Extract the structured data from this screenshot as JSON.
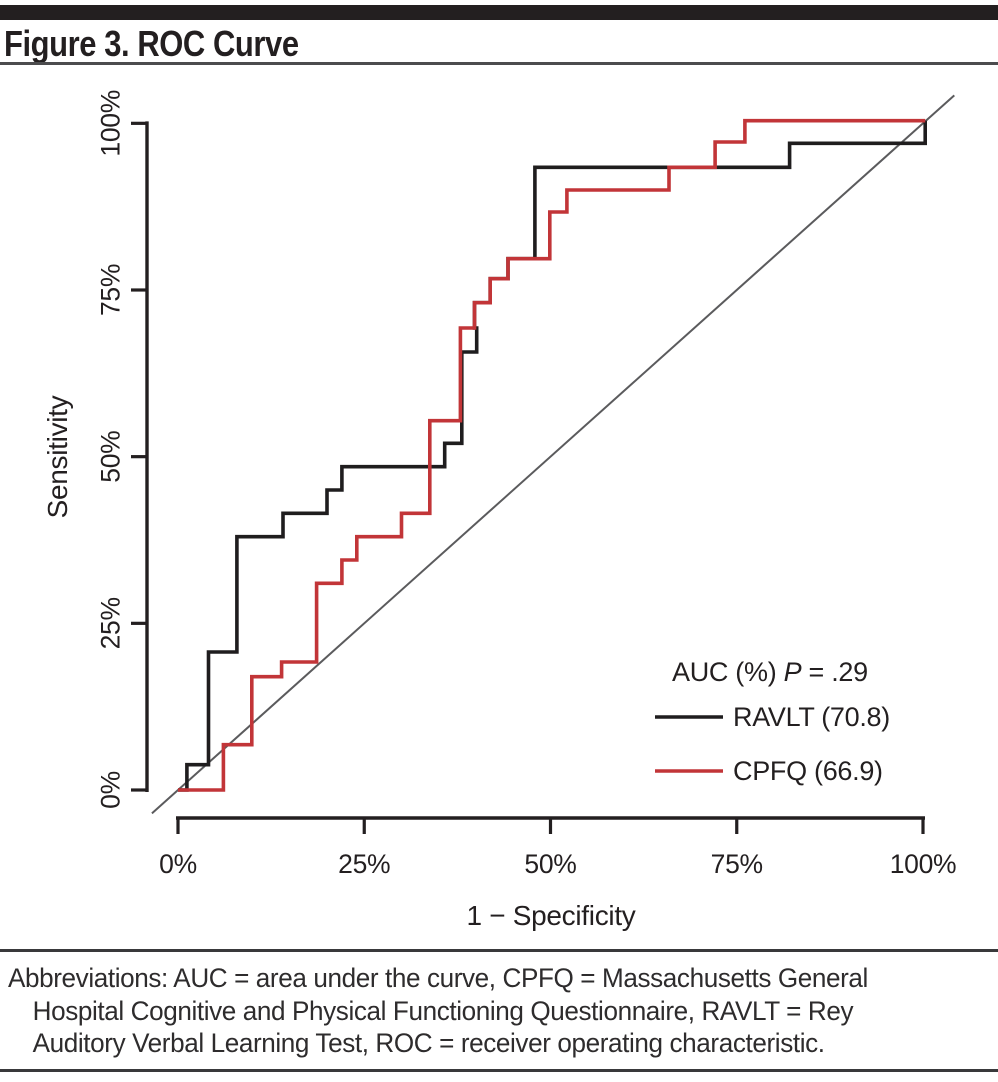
{
  "header": {
    "title": "Figure 3. ROC Curve"
  },
  "chart_data": {
    "type": "line",
    "subtype": "roc-step-curves",
    "title": "Figure 3. ROC Curve",
    "xlabel": "1 − Specificity",
    "ylabel": "Sensitivity",
    "xlim": [
      0,
      100
    ],
    "ylim": [
      0,
      100
    ],
    "grid": false,
    "diagonal_reference_line": true,
    "x_ticks": [
      {
        "label": "0%",
        "value": 0
      },
      {
        "label": "25%",
        "value": 25
      },
      {
        "label": "50%",
        "value": 50
      },
      {
        "label": "75%",
        "value": 75
      },
      {
        "label": "100%",
        "value": 100
      }
    ],
    "y_ticks": [
      {
        "label": "0%",
        "value": 0
      },
      {
        "label": "25%",
        "value": 25
      },
      {
        "label": "50%",
        "value": 50
      },
      {
        "label": "75%",
        "value": 75
      },
      {
        "label": "100%",
        "value": 100
      }
    ],
    "legend": {
      "position": "bottom-right",
      "title_parts": [
        "AUC (%) ",
        "P",
        " = .29"
      ],
      "items": [
        {
          "label": "RAVLT (70.8)",
          "color": "#1f1d1e"
        },
        {
          "label": "CPFQ (66.9)",
          "color": "#c23538"
        }
      ]
    },
    "series": [
      {
        "name": "RAVLT",
        "auc_percent": 70.8,
        "label": "RAVLT (70.8)",
        "color": "#1f1d1e",
        "points": [
          [
            0,
            0
          ],
          [
            1.2,
            0
          ],
          [
            1.2,
            3.8
          ],
          [
            4.1,
            3.8
          ],
          [
            4.1,
            20.7
          ],
          [
            7.9,
            20.7
          ],
          [
            7.9,
            38
          ],
          [
            14.1,
            38
          ],
          [
            14.1,
            41.5
          ],
          [
            20,
            41.5
          ],
          [
            20,
            45
          ],
          [
            22,
            45
          ],
          [
            22,
            48.5
          ],
          [
            35.8,
            48.5
          ],
          [
            35.8,
            52
          ],
          [
            38.1,
            52
          ],
          [
            38.1,
            65.7
          ],
          [
            40.1,
            65.7
          ],
          [
            40.1,
            69.3
          ],
          [
            39.8,
            69.3
          ],
          [
            39.8,
            73.1
          ],
          [
            41.9,
            73.1
          ],
          [
            41.9,
            76.7
          ],
          [
            44.3,
            76.7
          ],
          [
            44.3,
            79.7
          ],
          [
            47.9,
            79.7
          ],
          [
            47.9,
            93.4
          ],
          [
            82.1,
            93.4
          ],
          [
            82.1,
            97
          ],
          [
            100.3,
            97
          ],
          [
            100.3,
            100.4
          ]
        ]
      },
      {
        "name": "CPFQ",
        "auc_percent": 66.9,
        "label": "CPFQ (66.9)",
        "color": "#c23538",
        "points": [
          [
            0,
            0
          ],
          [
            6.1,
            0
          ],
          [
            6.1,
            6.8
          ],
          [
            9.9,
            6.8
          ],
          [
            9.9,
            17
          ],
          [
            13.9,
            17
          ],
          [
            13.9,
            19.2
          ],
          [
            18.6,
            19.2
          ],
          [
            18.6,
            31
          ],
          [
            22,
            31
          ],
          [
            22,
            34.5
          ],
          [
            24,
            34.5
          ],
          [
            24,
            38
          ],
          [
            30,
            38
          ],
          [
            30,
            41.5
          ],
          [
            33.8,
            41.5
          ],
          [
            33.8,
            55.4
          ],
          [
            37.9,
            55.4
          ],
          [
            37.9,
            69.3
          ],
          [
            39.8,
            69.3
          ],
          [
            39.8,
            73.1
          ],
          [
            41.9,
            73.1
          ],
          [
            41.9,
            76.7
          ],
          [
            44.3,
            76.7
          ],
          [
            44.3,
            79.7
          ],
          [
            49.9,
            79.7
          ],
          [
            49.9,
            86.7
          ],
          [
            52.2,
            86.7
          ],
          [
            52.2,
            90
          ],
          [
            65.9,
            90
          ],
          [
            65.9,
            93.4
          ],
          [
            72.1,
            93.4
          ],
          [
            72.1,
            97.2
          ],
          [
            76.1,
            97.2
          ],
          [
            76.1,
            100.4
          ],
          [
            100.3,
            100.4
          ]
        ]
      }
    ]
  },
  "footnote": {
    "lines": [
      "Abbreviations: AUC = area under the curve, CPFQ = Massachusetts General",
      "Hospital Cognitive and Physical Functioning Questionnaire, RAVLT = Rey",
      "Auditory Verbal Learning Test, ROC = receiver operating characteristic."
    ]
  }
}
